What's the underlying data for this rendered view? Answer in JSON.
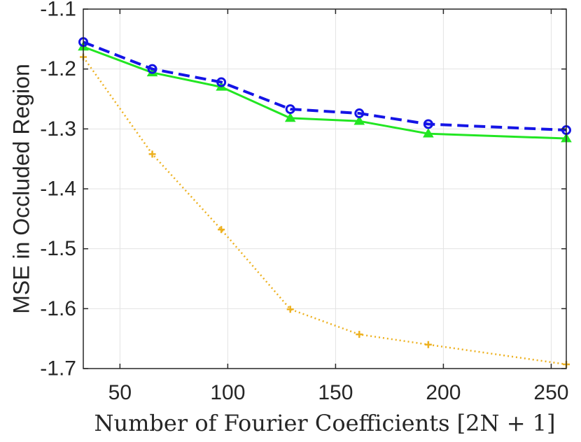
{
  "chart_data": {
    "type": "line",
    "xlabel": "Number of Fourier Coefficients [2N + 1]",
    "ylabel": "MSE in Occluded Region",
    "xlim": [
      33,
      257
    ],
    "ylim": [
      -1.7,
      -1.1
    ],
    "xticks": [
      50,
      100,
      150,
      200,
      250
    ],
    "yticks": [
      -1.1,
      -1.2,
      -1.3,
      -1.4,
      -1.5,
      -1.6,
      -1.7
    ],
    "grid": true,
    "x": [
      33,
      65,
      97,
      129,
      161,
      193,
      257
    ],
    "series": [
      {
        "color": "#1414E6",
        "line_style": "dashed",
        "marker": "circle",
        "values": [
          -1.155,
          -1.2,
          -1.222,
          -1.267,
          -1.274,
          -1.292,
          -1.302
        ]
      },
      {
        "color": "#22E622",
        "line_style": "solid",
        "marker": "triangle",
        "values": [
          -1.163,
          -1.206,
          -1.23,
          -1.282,
          -1.287,
          -1.308,
          -1.316
        ]
      },
      {
        "color": "#EDB120",
        "line_style": "dotted",
        "marker": "plus",
        "values": [
          -1.18,
          -1.342,
          -1.468,
          -1.601,
          -1.643,
          -1.66,
          -1.693
        ]
      }
    ]
  }
}
